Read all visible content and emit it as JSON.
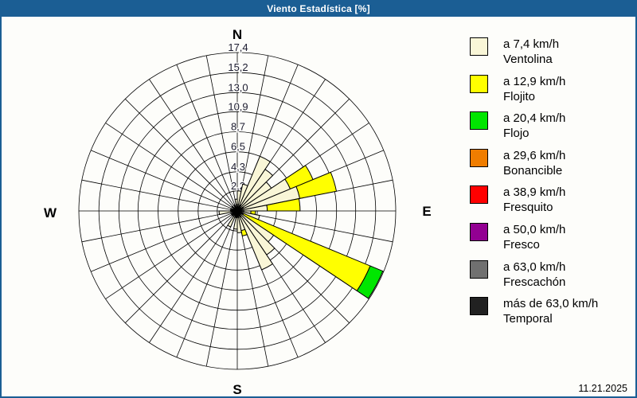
{
  "window": {
    "title": "Viento Estadística [%]",
    "date": "11.21.2025"
  },
  "colors": {
    "titlebar": "#1B5E94",
    "window_border": "#1B5E94",
    "panel_background": "#FDFDFA",
    "grid": "#000000",
    "ventolina": "#F9F6D7",
    "flojito": "#FFFF00",
    "flojo": "#00E600",
    "bonancible": "#F07D00",
    "fresquito": "#FF0000",
    "fresco": "#920092",
    "frescachon": "#707070",
    "temporal": "#212121"
  },
  "legend": {
    "items": [
      {
        "speed": "a 7,4 km/h",
        "name": "Ventolina",
        "color_key": "ventolina"
      },
      {
        "speed": "a 12,9 km/h",
        "name": "Flojito",
        "color_key": "flojito"
      },
      {
        "speed": "a 20,4 km/h",
        "name": "Flojo",
        "color_key": "flojo"
      },
      {
        "speed": "a 29,6 km/h",
        "name": "Bonancible",
        "color_key": "bonancible"
      },
      {
        "speed": "a 38,9 km/h",
        "name": "Fresquito",
        "color_key": "fresquito"
      },
      {
        "speed": "a 50,0 km/h",
        "name": "Fresco",
        "color_key": "fresco"
      },
      {
        "speed": "a 63,0 km/h",
        "name": "Frescachón",
        "color_key": "frescachon"
      },
      {
        "speed": "más de 63,0 km/h",
        "name": "Temporal",
        "color_key": "temporal"
      }
    ]
  },
  "chart_data": {
    "type": "windrose",
    "title": "Viento Estadística [%]",
    "units": "%",
    "compass": {
      "north": "N",
      "east": "E",
      "south": "S",
      "west": "W"
    },
    "radial_axis": {
      "max_value": 17.4,
      "ring_values": [
        2.2,
        4.3,
        6.5,
        8.7,
        10.9,
        13.0,
        15.2,
        17.4
      ],
      "ring_labels": [
        "2,2",
        "4,3",
        "6,5",
        "8,7",
        "10,9",
        "13,0",
        "15,2",
        "17,4"
      ]
    },
    "grid": {
      "rings": 8,
      "spokes": 32,
      "spoke_step_deg": 11.25
    },
    "petal_width_deg": 11.25,
    "stack_order": [
      "ventolina",
      "flojito",
      "flojo"
    ],
    "petals": [
      {
        "dir": 354.4,
        "ventolina": 1.3,
        "flojito": 0,
        "flojo": 0
      },
      {
        "dir": 5.6,
        "ventolina": 2.2,
        "flojito": 0,
        "flojo": 0
      },
      {
        "dir": 16.9,
        "ventolina": 3.0,
        "flojito": 0,
        "flojo": 0
      },
      {
        "dir": 28.1,
        "ventolina": 6.5,
        "flojito": 0,
        "flojo": 0
      },
      {
        "dir": 39.4,
        "ventolina": 5.5,
        "flojito": 0,
        "flojo": 0
      },
      {
        "dir": 50.6,
        "ventolina": 4.5,
        "flojito": 0,
        "flojo": 0
      },
      {
        "dir": 61.9,
        "ventolina": 6.3,
        "flojito": 2.7,
        "flojo": 0
      },
      {
        "dir": 73.1,
        "ventolina": 7.0,
        "flojito": 4.1,
        "flojo": 0
      },
      {
        "dir": 84.4,
        "ventolina": 3.3,
        "flojito": 3.6,
        "flojo": 0
      },
      {
        "dir": 95.6,
        "ventolina": 1.5,
        "flojito": 0.5,
        "flojo": 0
      },
      {
        "dir": 106.9,
        "ventolina": 2.5,
        "flojito": 0,
        "flojo": 0
      },
      {
        "dir": 118.1,
        "ventolina": 0.6,
        "flojito": 15.2,
        "flojo": 1.5
      },
      {
        "dir": 129.4,
        "ventolina": 4.8,
        "flojito": 0,
        "flojo": 0
      },
      {
        "dir": 140.6,
        "ventolina": 5.8,
        "flojito": 0,
        "flojo": 0
      },
      {
        "dir": 151.9,
        "ventolina": 7.0,
        "flojito": 0,
        "flojo": 0
      },
      {
        "dir": 163.1,
        "ventolina": 2.2,
        "flojito": 0.6,
        "flojo": 0
      },
      {
        "dir": 174.4,
        "ventolina": 2.4,
        "flojito": 0,
        "flojo": 0
      },
      {
        "dir": 185.6,
        "ventolina": 2.0,
        "flojito": 0,
        "flojo": 0
      },
      {
        "dir": 208.1,
        "ventolina": 1.9,
        "flojito": 0,
        "flojo": 0
      },
      {
        "dir": 264.4,
        "ventolina": 2.0,
        "flojito": 0,
        "flojo": 0
      }
    ]
  }
}
